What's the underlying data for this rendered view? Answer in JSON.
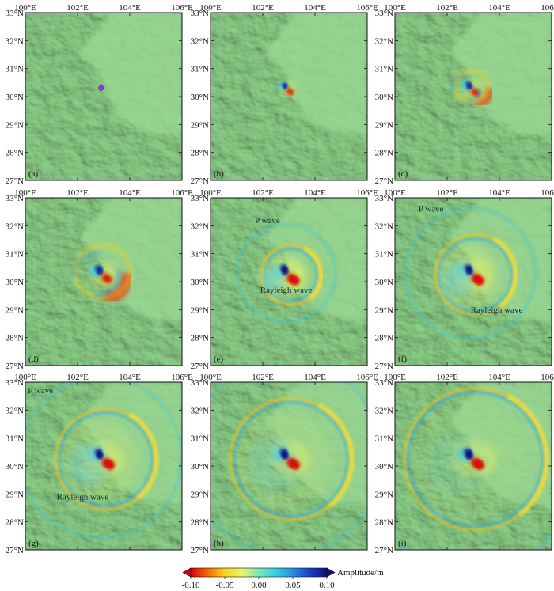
{
  "colors": {
    "terrain_base": "#8ed28a",
    "terrain_dark": "#5a9e58",
    "terrain_light": "#c9f0c0",
    "positive": "#1b1bb0",
    "negative": "#e8200c",
    "frame": "#111111"
  },
  "axes": {
    "lon_ticks": [
      "100°E",
      "102°E",
      "104°E",
      "106°E"
    ],
    "lat_ticks": [
      "33°N",
      "32°N",
      "31°N",
      "30°N",
      "29°N",
      "28°N",
      "27°N"
    ],
    "lon_range": [
      100,
      106
    ],
    "lat_range": [
      27,
      33
    ]
  },
  "epicenter": {
    "lon": 102.9,
    "lat": 30.3
  },
  "panels": [
    {
      "label": "(a)",
      "stage": 0,
      "waves": []
    },
    {
      "label": "(b)",
      "stage": 1,
      "waves": []
    },
    {
      "label": "(c)",
      "stage": 2,
      "waves": []
    },
    {
      "label": "(d)",
      "stage": 3,
      "waves": []
    },
    {
      "label": "(e)",
      "stage": 4,
      "waves": [
        {
          "text": "P wave",
          "lon": 101.7,
          "lat": 32.1
        },
        {
          "text": "Rayleigh wave",
          "lon": 101.9,
          "lat": 29.6
        }
      ]
    },
    {
      "label": "(f)",
      "stage": 5,
      "waves": [
        {
          "text": "P wave",
          "lon": 100.9,
          "lat": 32.5
        },
        {
          "text": "Rayleigh wave",
          "lon": 102.9,
          "lat": 28.9
        }
      ]
    },
    {
      "label": "(g)",
      "stage": 6,
      "waves": [
        {
          "text": "P wave",
          "lon": 100.1,
          "lat": 32.6
        },
        {
          "text": "Rayleigh wave",
          "lon": 101.2,
          "lat": 28.8
        }
      ]
    },
    {
      "label": "(h)",
      "stage": 7,
      "waves": []
    },
    {
      "label": "(i)",
      "stage": 8,
      "waves": []
    }
  ],
  "colorbar": {
    "ticks": [
      "-0.10",
      "-0.05",
      "0.00",
      "0.05",
      "0.10"
    ],
    "title": "Amplitude/m",
    "stops": [
      "#d4000d",
      "#f26a06",
      "#fbd21a",
      "#e6f56e",
      "#7de6b0",
      "#33d0e8",
      "#2a8fe0",
      "#1c3fc4",
      "#0c0c78"
    ]
  }
}
